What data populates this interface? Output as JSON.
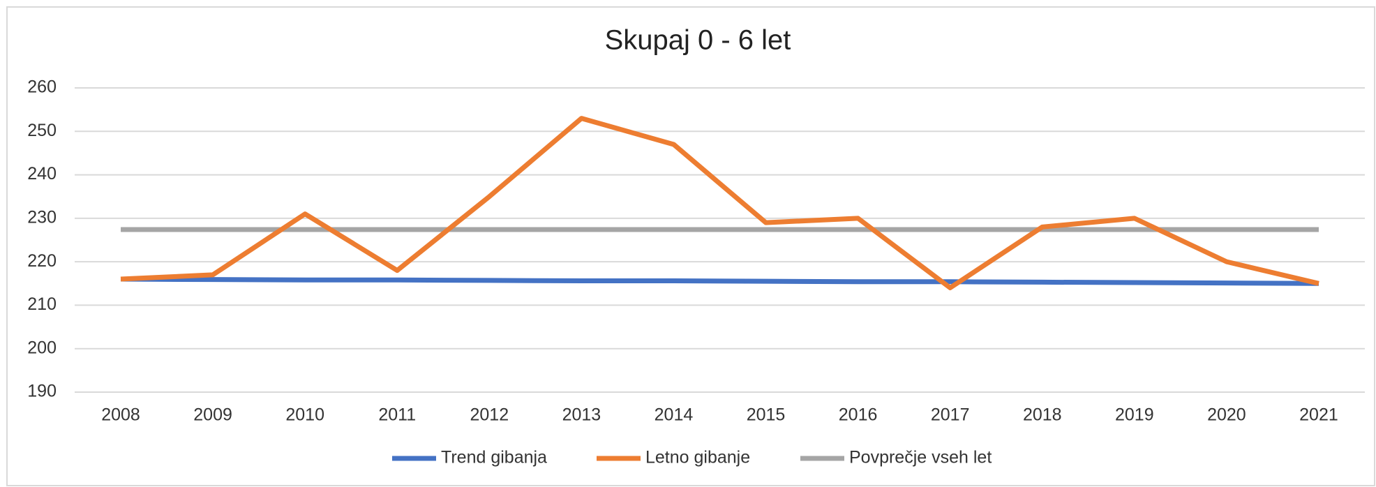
{
  "chart_data": {
    "type": "line",
    "title": "Skupaj 0 - 6 let",
    "categories": [
      "2008",
      "2009",
      "2010",
      "2011",
      "2012",
      "2013",
      "2014",
      "2015",
      "2016",
      "2017",
      "2018",
      "2019",
      "2020",
      "2021"
    ],
    "series": [
      {
        "name": "Trend gibanja",
        "color": "#4472c4",
        "values": [
          216,
          215.9,
          215.8,
          215.8,
          215.7,
          215.6,
          215.6,
          215.5,
          215.4,
          215.4,
          215.3,
          215.2,
          215.1,
          215
        ]
      },
      {
        "name": "Letno gibanje",
        "color": "#ed7d31",
        "values": [
          216,
          217,
          231,
          218,
          235,
          253,
          247,
          229,
          230,
          214,
          228,
          230,
          220,
          215
        ]
      },
      {
        "name": "Povprečje vseh let",
        "color": "#a5a5a5",
        "values": [
          227.4,
          227.4,
          227.4,
          227.4,
          227.4,
          227.4,
          227.4,
          227.4,
          227.4,
          227.4,
          227.4,
          227.4,
          227.4,
          227.4
        ]
      }
    ],
    "ylim": [
      190,
      260
    ],
    "yticks": [
      190,
      200,
      210,
      220,
      230,
      240,
      250,
      260
    ],
    "grid": true,
    "legend": "bottom"
  }
}
